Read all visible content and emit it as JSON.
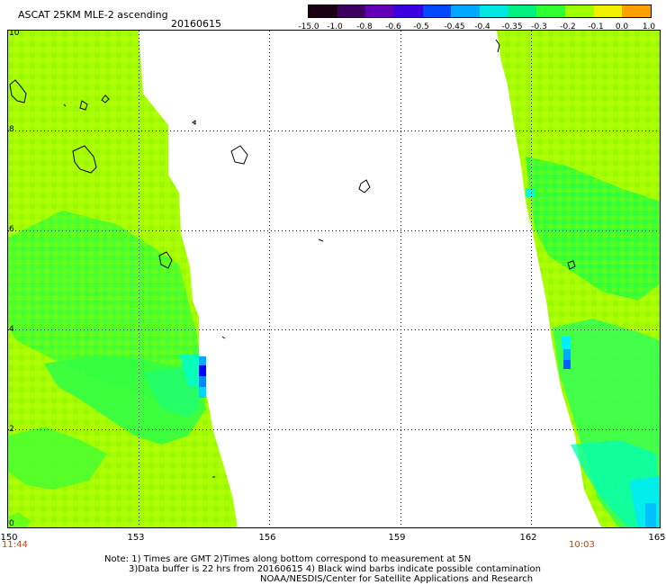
{
  "header": {
    "title": "ASCAT 25KM MLE-2 ascending",
    "date": "20160615"
  },
  "color_scale": {
    "labels": [
      "-15.0",
      "-1.0",
      "-0.8",
      "-0.6",
      "-0.5",
      "-0.45",
      "-0.4",
      "-0.35",
      "-0.3",
      "-0.2",
      "-0.1",
      "0.0",
      "1.0"
    ],
    "colors": [
      "#1a0012",
      "#3d0060",
      "#6000b8",
      "#3a00e0",
      "#0048ff",
      "#00a8ff",
      "#00e8e0",
      "#00f080",
      "#30ff30",
      "#a0ff00",
      "#f0f000",
      "#ffa000",
      "#ff2000"
    ]
  },
  "axes": {
    "x_labels": [
      "150",
      "153",
      "156",
      "159",
      "162",
      "165"
    ],
    "y_labels": [
      "0",
      "2",
      "4",
      "6",
      "8",
      "10"
    ],
    "left_time": "11:44",
    "right_time": "10:03"
  },
  "palette": {
    "yellow_green": "#a6ff00",
    "green": "#33ff33",
    "cyan": "#00ffd4",
    "light_blue": "#00aaff",
    "blue": "#0000ff"
  },
  "notes": {
    "line1": "Note: 1) Times are GMT 2)Times along bottom correspond to measurement at 5N",
    "line2": "3)Data buffer is 22 hrs from 20160615 4) Black wind barbs indicate possible contamination",
    "line3": "NOAA/NESDIS/Center for Satellite Applications and Research"
  }
}
